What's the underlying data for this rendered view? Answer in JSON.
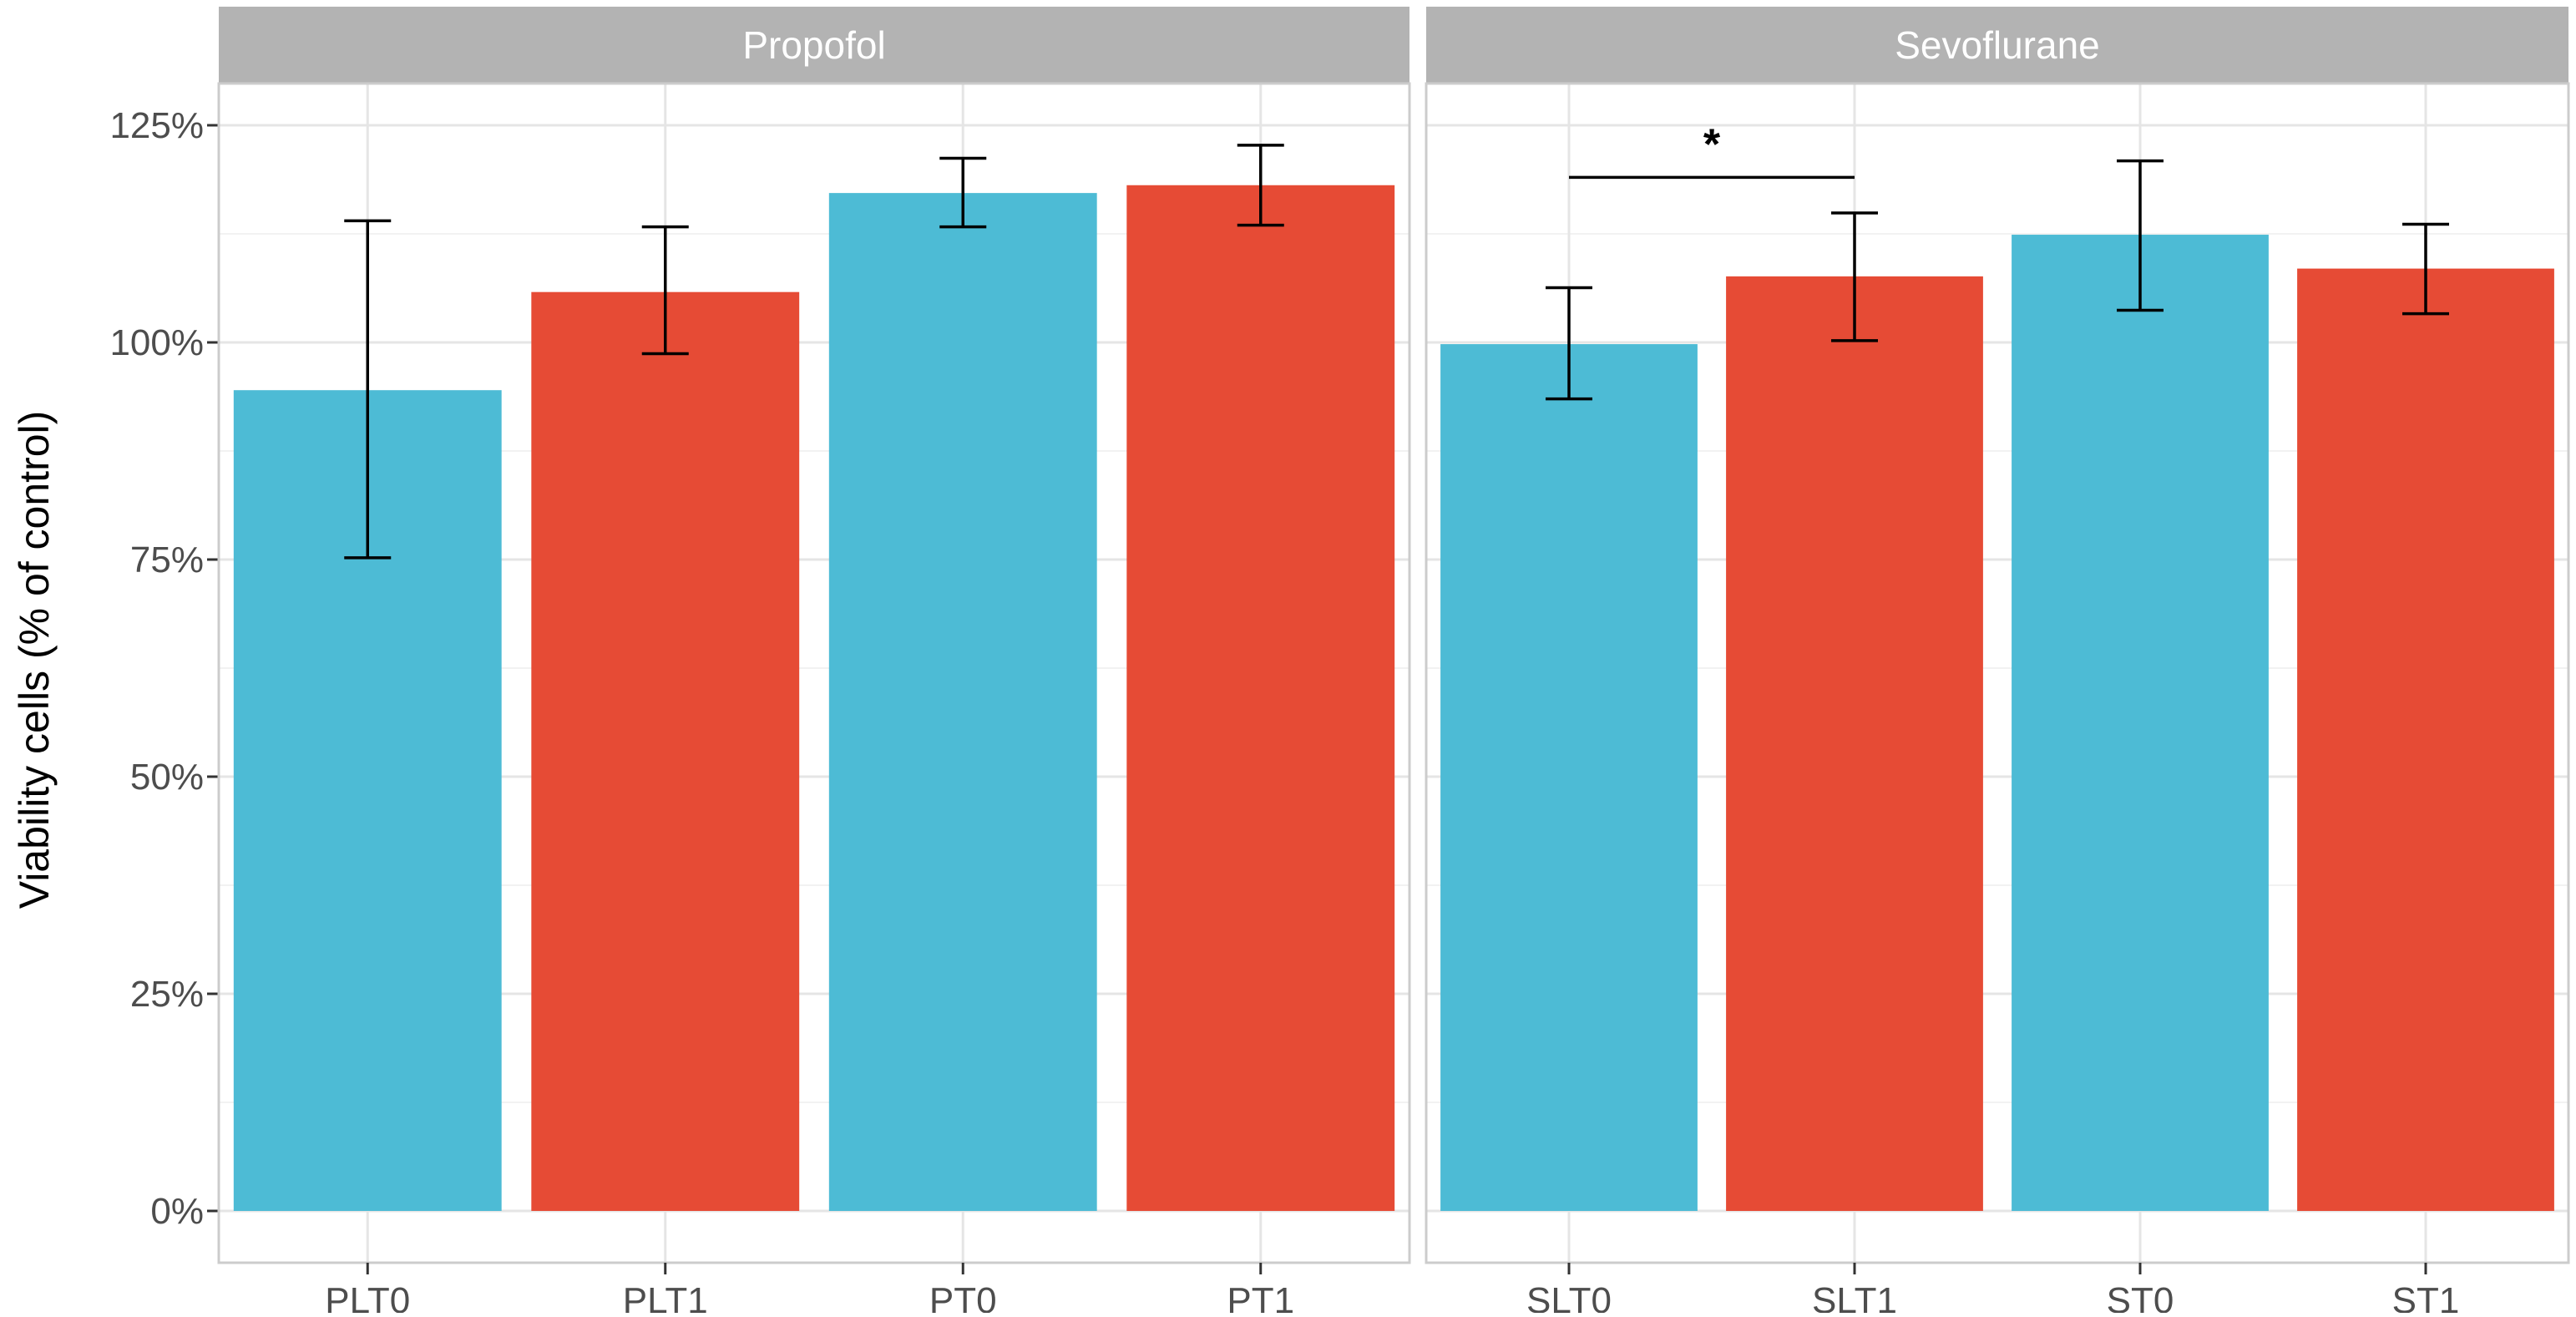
{
  "chart_data": {
    "type": "bar",
    "ylabel": "Viability cells (% of control)",
    "xlabel": "",
    "ylim": [
      0,
      1.25
    ],
    "yticks": [
      {
        "value": 0,
        "label": "0%"
      },
      {
        "value": 0.25,
        "label": "25%"
      },
      {
        "value": 0.5,
        "label": "50%"
      },
      {
        "value": 0.75,
        "label": "75%"
      },
      {
        "value": 1.0,
        "label": "100%"
      },
      {
        "value": 1.25,
        "label": "125%"
      }
    ],
    "grid": true,
    "colors": {
      "T0": "#4DBBD5",
      "T1": "#E64B35",
      "strip": "#B3B3B3",
      "strip_text": "#FFFFFF",
      "panel_border": "#CCCCCC",
      "grid_major": "#E5E5E5",
      "grid_minor": "#F2F2F2",
      "axis_text": "#4D4D4D",
      "axis_title": "#000000",
      "errorbar": "#000000"
    },
    "panels": [
      {
        "title": "Propofol",
        "categories": [
          "PLT0",
          "PLT1",
          "PT0",
          "PT1"
        ],
        "values": [
          0.945,
          1.058,
          1.172,
          1.181
        ],
        "error_low": [
          0.752,
          0.987,
          1.133,
          1.135
        ],
        "error_high": [
          1.14,
          1.133,
          1.212,
          1.227
        ],
        "groups": [
          "T0",
          "T1",
          "T0",
          "T1"
        ],
        "significance": []
      },
      {
        "title": "Sevoflurane",
        "categories": [
          "SLT0",
          "SLT1",
          "ST0",
          "ST1"
        ],
        "values": [
          0.998,
          1.076,
          1.124,
          1.085
        ],
        "error_low": [
          0.935,
          1.002,
          1.037,
          1.033
        ],
        "error_high": [
          1.063,
          1.149,
          1.209,
          1.136
        ],
        "groups": [
          "T0",
          "T1",
          "T0",
          "T1"
        ],
        "significance": [
          {
            "from": 0,
            "to": 1,
            "value": 1.19,
            "label": "*"
          }
        ]
      }
    ]
  }
}
